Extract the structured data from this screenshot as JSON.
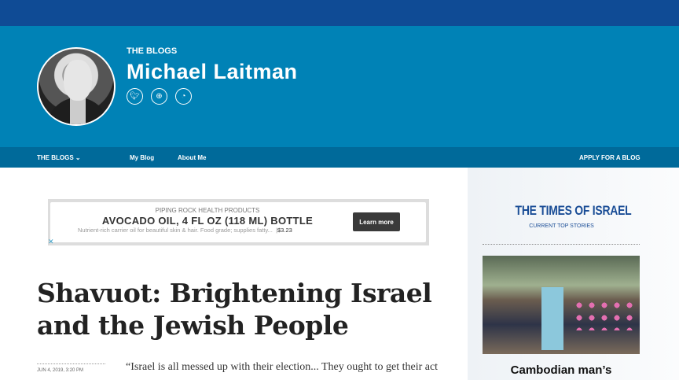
{
  "header": {
    "kicker": "THE BLOGS",
    "author": "Michael Laitman",
    "social_icons": [
      "twitter-icon",
      "globe-icon",
      "rss-icon"
    ]
  },
  "nav": {
    "blogs": "THE BLOGS",
    "blogs_chevron": "⌄",
    "my_blog": "My Blog",
    "about": "About Me",
    "apply": "APPLY FOR A BLOG"
  },
  "ad": {
    "source": "PIPING ROCK HEALTH PRODUCTS",
    "title": "AVOCADO OIL, 4 FL OZ (118 ML) BOTTLE",
    "description": "Nutrient-rich carrier oil for beautiful skin & hair. Food grade; supplies fatty...",
    "separator": "|",
    "price": "$3.23",
    "button": "Learn more",
    "close": "✕"
  },
  "article": {
    "title": "Shavuot: Brightening Israel and the Jewish People",
    "date": "JUN 4, 2019, 3:20 PM",
    "lead": "“Israel is all messed up with their election... They ought to get their act"
  },
  "sidebar": {
    "brand": "THE TIMES OF ISRAEL",
    "subtitle": "CURRENT TOP STORIES",
    "story_headline": "Cambodian man’s"
  },
  "colors": {
    "topbar": "#0f4b95",
    "header": "#0082b6",
    "nav": "#006a9a",
    "brand": "#1a4d96"
  }
}
